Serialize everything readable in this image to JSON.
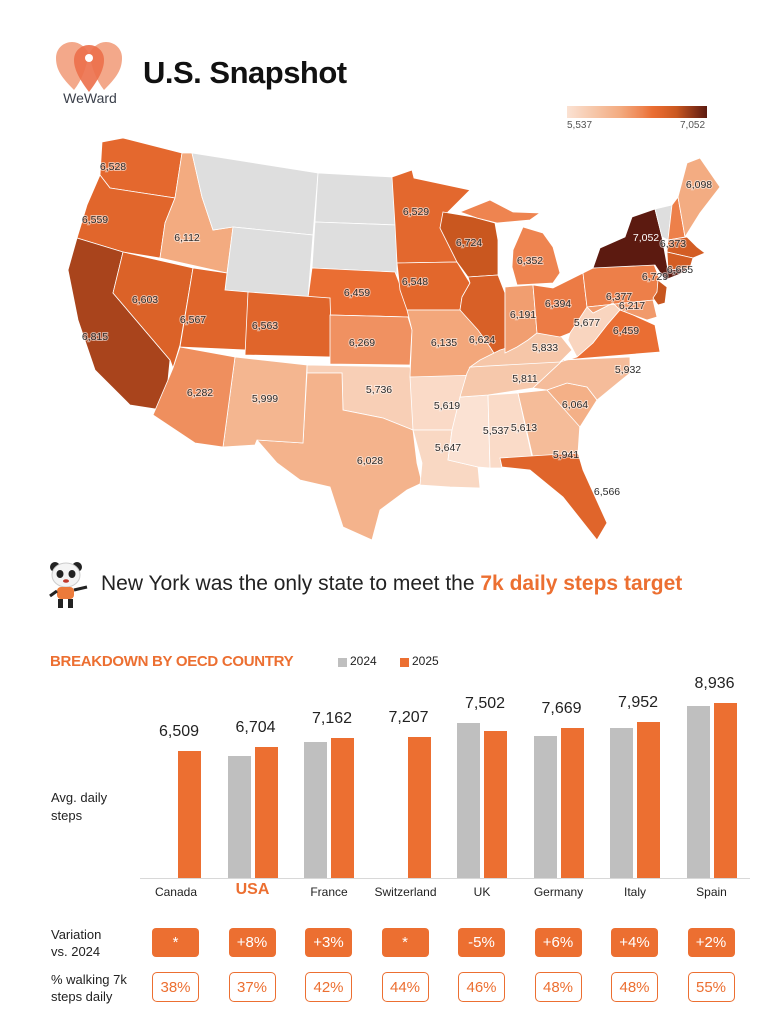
{
  "header": {
    "brand": "WeWard",
    "title": "U.S. Snapshot"
  },
  "map": {
    "legend": {
      "min_label": "5,537",
      "max_label": "7,052",
      "min": 5537,
      "max": 7052
    },
    "color_scale": [
      [
        5537,
        "#fbe2d3"
      ],
      [
        5833,
        "#f6c6a8"
      ],
      [
        6112,
        "#f3ab80"
      ],
      [
        6352,
        "#ee8450"
      ],
      [
        6459,
        "#ea6e33"
      ],
      [
        6566,
        "#e0652b"
      ],
      [
        6724,
        "#c9571f"
      ],
      [
        6815,
        "#a9441c"
      ],
      [
        7052,
        "#5c1a10"
      ]
    ],
    "no_data_color": "#dedede",
    "states": {
      "WA": "6,528",
      "OR": "6,559",
      "CA": "6,815",
      "NV": "6,603",
      "ID": "6,112",
      "UT": "6,567",
      "CO": "6,563",
      "AZ": "6,282",
      "NM": "5,999",
      "NE": "6,459",
      "KS": "6,269",
      "OK": "5,736",
      "TX": "6,028",
      "MN": "6,529",
      "IA": "6,548",
      "MO": "6,135",
      "AR": "5,619",
      "LA": "5,647",
      "WI": "6,724",
      "IL": "6,624",
      "MI": "6,352",
      "IN": "6,191",
      "OH": "6,394",
      "KY": "5,833",
      "TN": "5,811",
      "MS": "5,537",
      "AL": "5,613",
      "GA": "5,941",
      "FL": "6,566",
      "SC": "6,064",
      "NC": "5,932",
      "VA": "6,459",
      "WV": "5,677",
      "MD": "6,217",
      "PA": "6,377",
      "NJ": "6,729",
      "NY": "7,052",
      "NH": "6,373",
      "MA": "6,655",
      "ME": "6,098"
    }
  },
  "headline": {
    "prefix": "New York was the only state to meet the ",
    "highlight": "7k daily steps target"
  },
  "chart_data": {
    "type": "bar",
    "title": "BREAKDOWN BY OECD COUNTRY",
    "ylabel": "Avg. daily steps",
    "categories": [
      "Canada",
      "USA",
      "France",
      "Switzerland",
      "UK",
      "Germany",
      "Italy",
      "Spain"
    ],
    "highlight_category": "USA",
    "series": [
      {
        "name": "2024",
        "color": "#bfbfbf",
        "values": [
          null,
          6207,
          6953,
          null,
          7897,
          7235,
          7646,
          8761
        ]
      },
      {
        "name": "2025",
        "color": "#ec6f31",
        "values": [
          6509,
          6704,
          7162,
          7207,
          7502,
          7669,
          7952,
          8936
        ]
      }
    ],
    "value_labels": [
      "6,509",
      "6,704",
      "7,162",
      "7,207",
      "7,502",
      "7,669",
      "7,952",
      "8,936"
    ],
    "ylim": [
      0,
      8936
    ]
  },
  "rows": {
    "variation_label": [
      "Variation",
      "vs. 2024"
    ],
    "variation": [
      "*",
      "+8%",
      "+3%",
      "*",
      "-5%",
      "+6%",
      "+4%",
      "+2%"
    ],
    "pct_label": [
      "% walking 7k",
      "steps daily"
    ],
    "pct": [
      "38%",
      "37%",
      "42%",
      "44%",
      "46%",
      "48%",
      "48%",
      "55%"
    ]
  }
}
